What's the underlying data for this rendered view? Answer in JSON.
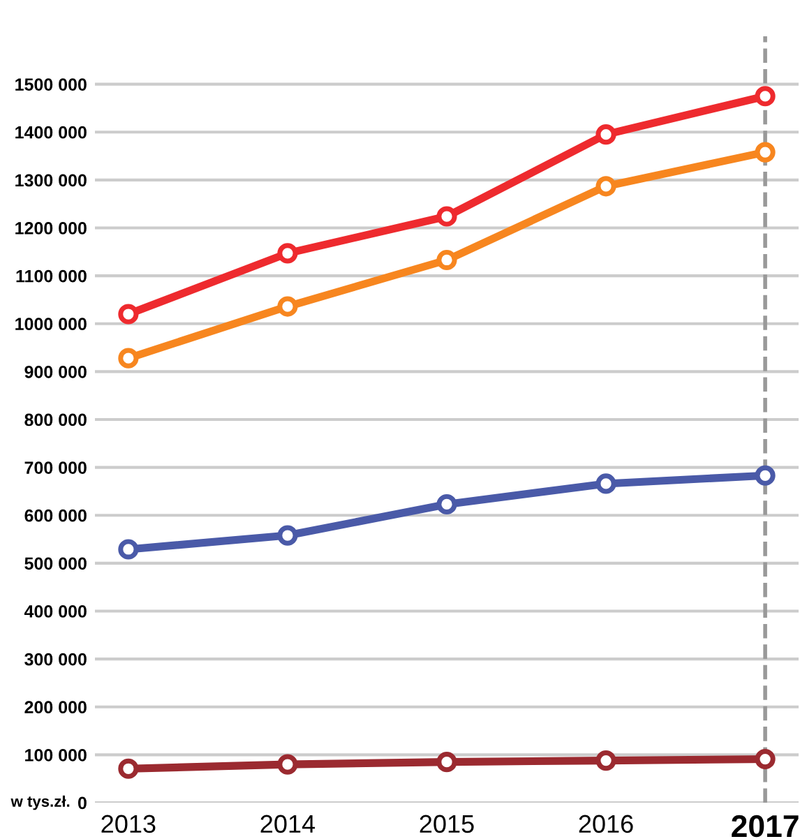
{
  "chart_data": {
    "type": "line",
    "ylabel": "w tys.zł.",
    "x": [
      2013,
      2014,
      2015,
      2016,
      2017
    ],
    "xlim": [
      2012.79,
      2017.21
    ],
    "xticks": [
      2013,
      2014,
      2015,
      2016,
      2017
    ],
    "ylim": [
      0,
      1600000
    ],
    "yticks": [
      {
        "value": 0,
        "label": "0"
      },
      {
        "value": 100000,
        "label": "100 000"
      },
      {
        "value": 200000,
        "label": "200 000"
      },
      {
        "value": 300000,
        "label": "300 000"
      },
      {
        "value": 400000,
        "label": "400 000"
      },
      {
        "value": 500000,
        "label": "500 000"
      },
      {
        "value": 600000,
        "label": "600 000"
      },
      {
        "value": 700000,
        "label": "700 000"
      },
      {
        "value": 800000,
        "label": "800 000"
      },
      {
        "value": 900000,
        "label": "900 000"
      },
      {
        "value": 1000000,
        "label": "1000 000"
      },
      {
        "value": 1100000,
        "label": "1100 000"
      },
      {
        "value": 1200000,
        "label": "1200 000"
      },
      {
        "value": 1300000,
        "label": "1300 000"
      },
      {
        "value": 1400000,
        "label": "1400 000"
      },
      {
        "value": 1500000,
        "label": "1500 000"
      }
    ],
    "series": [
      {
        "color": "#ee2a2e",
        "values": [
          1020000,
          1147000,
          1224000,
          1395000,
          1475000
        ]
      },
      {
        "color": "#f7861f",
        "values": [
          928000,
          1036000,
          1133000,
          1287000,
          1358000
        ]
      },
      {
        "color": "#4a5aa8",
        "values": [
          529000,
          558000,
          623000,
          666000,
          683000
        ]
      },
      {
        "color": "#9b2a30",
        "values": [
          71000,
          80000,
          85000,
          88000,
          91000
        ]
      }
    ],
    "ref_lines": [
      {
        "axis": "x",
        "value": 2017,
        "color": "#999999",
        "line_style": "dashed"
      }
    ],
    "grid": "y",
    "marker": "circle",
    "line_style": "solid"
  }
}
